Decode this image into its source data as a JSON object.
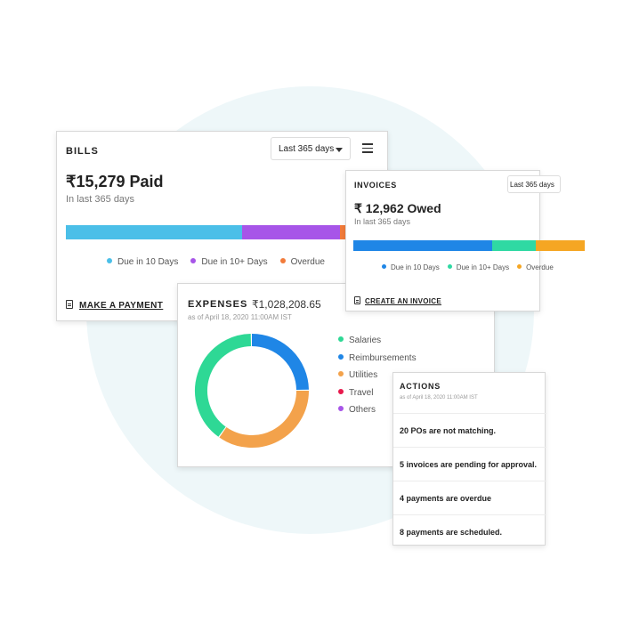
{
  "bills": {
    "title": "BILLS",
    "range": "Last 365 days",
    "amount": "₹15,279 Paid",
    "subtitle": "In last 365 days",
    "bar": [
      {
        "fraction": 0.52,
        "color": "#4bbfe8"
      },
      {
        "fraction": 0.29,
        "color": "#a755e8"
      },
      {
        "fraction": 0.19,
        "color": "#f27b3a"
      }
    ],
    "legend": [
      {
        "label": "Due in 10 Days",
        "color": "#4bbfe8"
      },
      {
        "label": "Due in 10+ Days",
        "color": "#a755e8"
      },
      {
        "label": "Overdue",
        "color": "#f27b3a"
      }
    ],
    "action": "MAKE A PAYMENT"
  },
  "invoices": {
    "title": "INVOICES",
    "range": "Last 365 days",
    "amount": "₹ 12,962 Owed",
    "subtitle": "In last 365 days",
    "bar": [
      {
        "fraction": 0.6,
        "color": "#1f86e6"
      },
      {
        "fraction": 0.19,
        "color": "#2fd9a3"
      },
      {
        "fraction": 0.21,
        "color": "#f5a623"
      }
    ],
    "legend": [
      {
        "label": "Due in 10 Days",
        "color": "#1f86e6"
      },
      {
        "label": "Due in 10+ Days",
        "color": "#2fd9a3"
      },
      {
        "label": "Overdue",
        "color": "#f5a623"
      }
    ],
    "action": "CREATE AN INVOICE"
  },
  "expenses": {
    "title": "EXPENSES",
    "amount": "₹1,028,208.65",
    "as_of": "as of April 18, 2020 11:00AM IST",
    "legend": [
      {
        "label": "Salaries",
        "color": "#2ed895"
      },
      {
        "label": "Reimbursements",
        "color": "#1f86e6"
      },
      {
        "label": "Utilities",
        "color": "#f3a24b"
      },
      {
        "label": "Travel",
        "color": "#e8194d"
      },
      {
        "label": "Others",
        "color": "#a755e8"
      }
    ],
    "chart_data": {
      "type": "pie",
      "style": "donut",
      "categories": [
        "Reimbursements",
        "Utilities",
        "Salaries"
      ],
      "values": [
        25,
        35,
        40
      ],
      "colors": [
        "#1f86e6",
        "#f3a24b",
        "#2ed895"
      ]
    }
  },
  "actions": {
    "title": "ACTIONS",
    "as_of": "as of April 18, 2020 11:00AM IST",
    "items": [
      "20 POs are not matching.",
      "5 invoices are pending for approval.",
      "4 payments are overdue",
      "8 payments are scheduled."
    ]
  }
}
